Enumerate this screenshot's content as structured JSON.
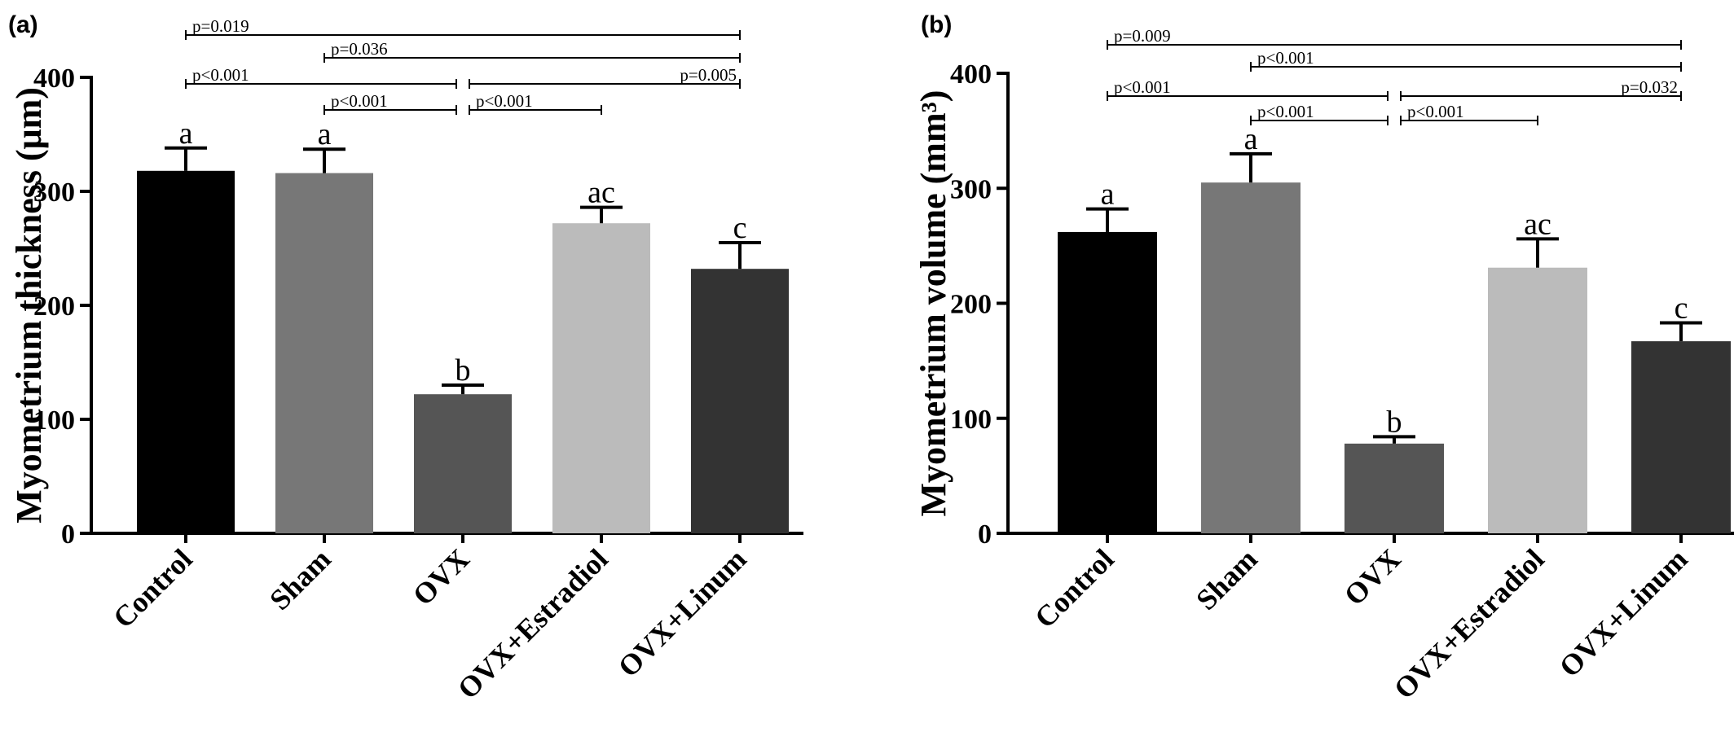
{
  "chart_data": [
    {
      "panel": "(a)",
      "type": "bar",
      "ylabel": "Myometrium thickness (μm)",
      "ylim": [
        0,
        400
      ],
      "yticks": [
        "0",
        "100",
        "200",
        "300",
        "400"
      ],
      "categories": [
        "Control",
        "Sham",
        "OVX",
        "OVX+Estradiol",
        "OVX+Linum"
      ],
      "values": [
        318,
        316,
        122,
        272,
        232
      ],
      "errors": [
        20,
        21,
        8,
        14,
        23
      ],
      "letters": [
        "a",
        "a",
        "b",
        "ac",
        "c"
      ],
      "colors": [
        "#000000",
        "#777777",
        "#555555",
        "#bbbbbb",
        "#333333"
      ],
      "comparisons": [
        {
          "from": 0,
          "to": 4,
          "label": "p=0.019",
          "label_pos": "left"
        },
        {
          "from": 1,
          "to": 4,
          "label": "p=0.036",
          "label_pos": "left"
        },
        {
          "from": 0,
          "to": 2,
          "label": "p<0.001",
          "label_pos": "left"
        },
        {
          "from": 2,
          "to": 4,
          "label": "p=0.005",
          "label_pos": "right"
        },
        {
          "from": 1,
          "to": 2,
          "label": "p<0.001",
          "label_pos": "left"
        },
        {
          "from": 2,
          "to": 3,
          "label": "p<0.001",
          "label_pos": "left"
        }
      ]
    },
    {
      "panel": "(b)",
      "type": "bar",
      "ylabel": "Myometrium volume (mm³)",
      "ylim": [
        0,
        400
      ],
      "yticks": [
        "0",
        "100",
        "200",
        "300",
        "400"
      ],
      "categories": [
        "Control",
        "Sham",
        "OVX",
        "OVX+Estradiol",
        "OVX+Linum"
      ],
      "values": [
        262,
        305,
        78,
        231,
        167
      ],
      "errors": [
        20,
        25,
        6,
        25,
        16
      ],
      "letters": [
        "a",
        "a",
        "b",
        "ac",
        "c"
      ],
      "colors": [
        "#000000",
        "#777777",
        "#555555",
        "#bbbbbb",
        "#333333"
      ],
      "comparisons": [
        {
          "from": 0,
          "to": 4,
          "label": "p=0.009",
          "label_pos": "left"
        },
        {
          "from": 1,
          "to": 4,
          "label": "p<0.001",
          "label_pos": "left"
        },
        {
          "from": 0,
          "to": 2,
          "label": "p<0.001",
          "label_pos": "left"
        },
        {
          "from": 2,
          "to": 4,
          "label": "p=0.032",
          "label_pos": "right"
        },
        {
          "from": 1,
          "to": 2,
          "label": "p<0.001",
          "label_pos": "left"
        },
        {
          "from": 2,
          "to": 3,
          "label": "p<0.001",
          "label_pos": "left"
        }
      ]
    }
  ]
}
